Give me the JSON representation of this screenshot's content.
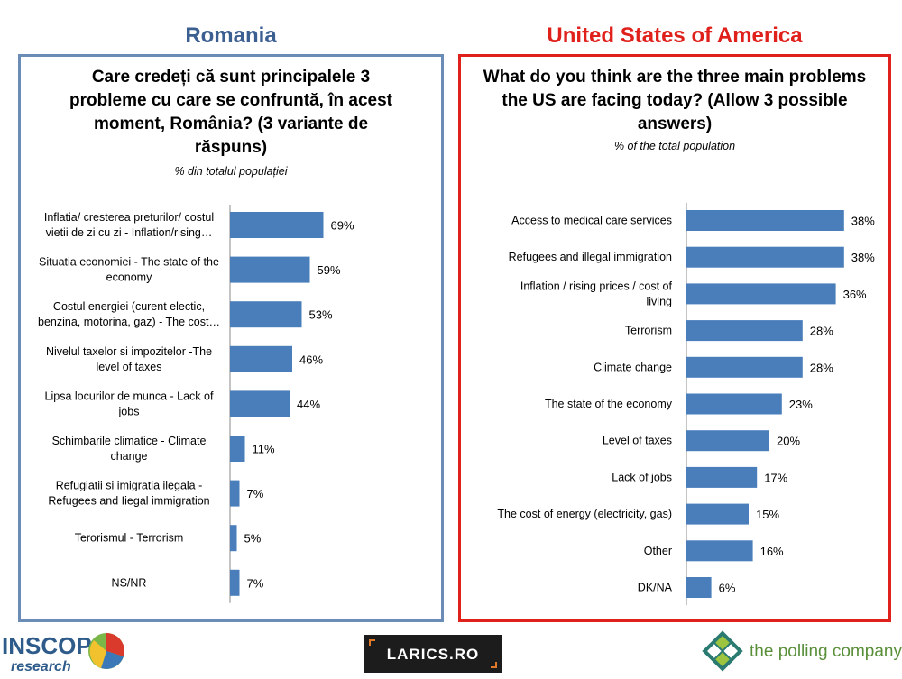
{
  "headers": {
    "romania": "Romania",
    "usa": "United States of America"
  },
  "romania_panel": {
    "question": "Care credeți că sunt principalele 3 probleme cu care se confruntă, în acest moment, România? (3 variante de răspuns)",
    "subtitle": "% din totalul populației"
  },
  "usa_panel": {
    "question": "What do you think are the three main problems the US are facing today? (Allow 3 possible answers)",
    "subtitle": "% of the total population"
  },
  "chart_data": [
    {
      "type": "bar",
      "orientation": "horizontal",
      "bar_color": "#4a7ebb",
      "categories": [
        [
          "Inflatia/ cresterea preturilor/ costul",
          "vietii de zi cu zi - Inflation/rising…"
        ],
        [
          "Situatia economiei - The state of the",
          "economy"
        ],
        [
          "Costul energiei (curent electic,",
          "benzina, motorina, gaz) - The cost…"
        ],
        [
          "Nivelul taxelor si impozitelor -The",
          "level of  taxes"
        ],
        [
          "Lipsa locurilor de munca - Lack of",
          "jobs"
        ],
        [
          "Schimbarile climatice - Climate",
          "change"
        ],
        [
          "Refugiatii si imigratia ilegala -",
          "Refugees and Iiegal immigration"
        ],
        [
          "Terorismul - Terrorism"
        ],
        [
          "NS/NR"
        ]
      ],
      "values": [
        69,
        59,
        53,
        46,
        44,
        11,
        7,
        5,
        7
      ],
      "value_labels": [
        "69%",
        "59%",
        "53%",
        "46%",
        "44%",
        "11%",
        "7%",
        "5%",
        "7%"
      ],
      "xlim": [
        0,
        100
      ]
    },
    {
      "type": "bar",
      "orientation": "horizontal",
      "bar_color": "#4a7ebb",
      "categories": [
        [
          "Access to medical care services"
        ],
        [
          "Refugees and illegal immigration"
        ],
        [
          "Inflation / rising prices / cost of",
          "living"
        ],
        [
          "Terrorism"
        ],
        [
          "Climate change"
        ],
        [
          "The state of the economy"
        ],
        [
          "Level of taxes"
        ],
        [
          "Lack of jobs"
        ],
        [
          "The cost of energy (electricity, gas)"
        ],
        [
          "Other"
        ],
        [
          "DK/NA"
        ]
      ],
      "values": [
        38,
        38,
        36,
        28,
        28,
        23,
        20,
        17,
        15,
        16,
        6
      ],
      "value_labels": [
        "38%",
        "38%",
        "36%",
        "28%",
        "28%",
        "23%",
        "20%",
        "17%",
        "15%",
        "16%",
        "6%"
      ],
      "xlim": [
        0,
        100
      ]
    }
  ],
  "logos": {
    "inscop_top": "INSCOP",
    "inscop_bottom": "research",
    "larics": "LARICS.RO",
    "polling": "the polling company"
  }
}
